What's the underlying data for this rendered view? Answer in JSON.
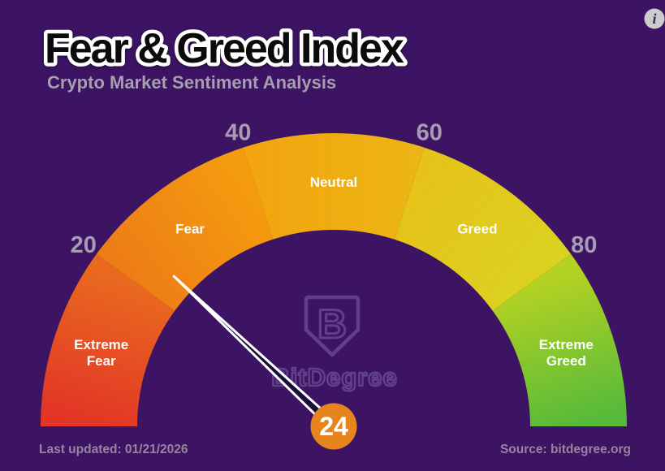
{
  "header": {
    "title": "Fear & Greed Index",
    "subtitle": "Crypto Market Sentiment Analysis"
  },
  "footer": {
    "last_updated": "Last updated: 01/21/2026",
    "source": "Source: bitdegree.org"
  },
  "info": {
    "glyph": "i"
  },
  "watermark": {
    "letter": "B",
    "logo_text": "BitDegree"
  },
  "colors": {
    "background": "#3d1464",
    "title_fill": "#0b0b0b",
    "title_stroke": "#ffffff",
    "subtitle": "#a79eae",
    "tick_text": "#a79cb2",
    "footer_text": "#95869e",
    "segment_label": "#ffffff",
    "needle_fill": "#161038",
    "needle_stroke": "#ffffff",
    "badge_fill": "#e8841e",
    "badge_text": "#ffffff",
    "watermark": "#9a8cc0",
    "info_circle": "#cccccc",
    "info_glyph": "#3a2458"
  },
  "chart_data": {
    "type": "gauge",
    "title": "Fear & Greed Index",
    "subtitle": "Crypto Market Sentiment Analysis",
    "value": 24,
    "value_label": "24",
    "min": 0,
    "max": 100,
    "start_angle_deg": 180,
    "end_angle_deg": 0,
    "tick_values": [
      20,
      40,
      60,
      80
    ],
    "segments": [
      {
        "label": "Extreme Fear",
        "from": 0,
        "to": 20,
        "color_start": "#e23526",
        "color_end": "#e96a1f"
      },
      {
        "label": "Fear",
        "from": 20,
        "to": 40,
        "color_start": "#ed7e16",
        "color_end": "#f59c0e"
      },
      {
        "label": "Neutral",
        "from": 40,
        "to": 60,
        "color_start": "#f2a50f",
        "color_end": "#ecb414"
      },
      {
        "label": "Greed",
        "from": 60,
        "to": 80,
        "color_start": "#e6c319",
        "color_end": "#dbd120"
      },
      {
        "label": "Extreme Greed",
        "from": 80,
        "to": 100,
        "color_start": "#b5d222",
        "color_end": "#56ba3a"
      }
    ]
  }
}
